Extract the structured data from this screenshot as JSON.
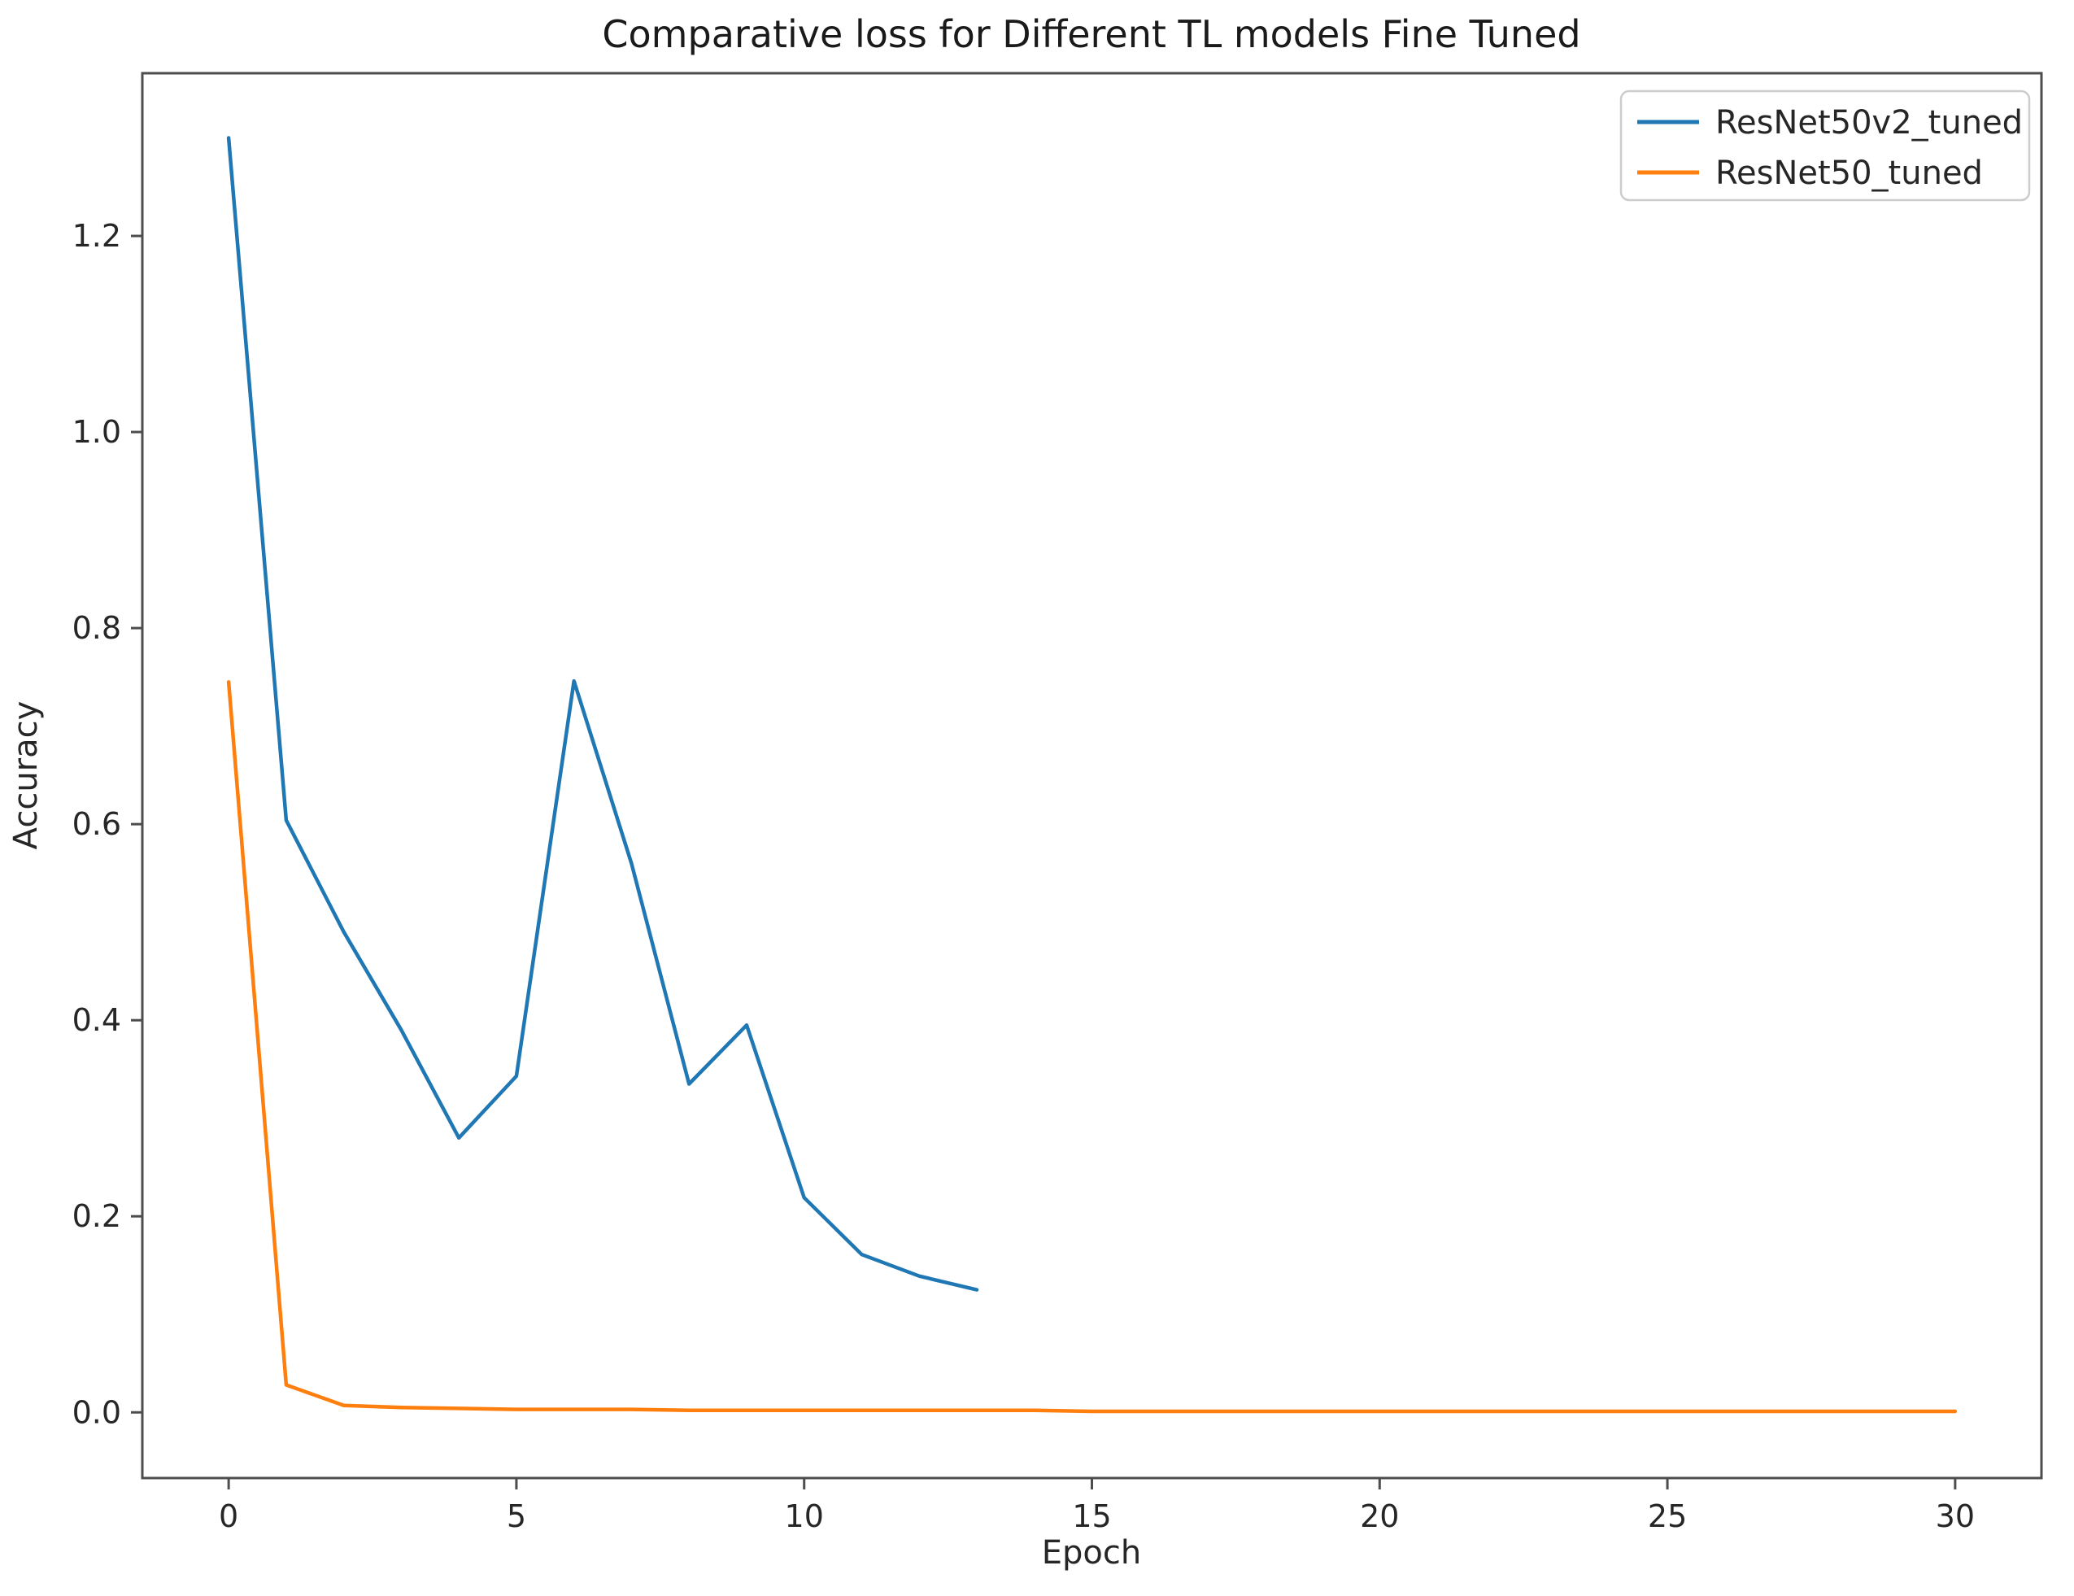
{
  "figure": {
    "title": "Comparative loss for Different TL models Fine Tuned",
    "xlabel": "Epoch",
    "ylabel": "Accuracy"
  },
  "chart_data": {
    "type": "line",
    "title": "Comparative loss for Different TL models Fine Tuned",
    "xlabel": "Epoch",
    "ylabel": "Accuracy",
    "xlim": [
      -1.5,
      31.5
    ],
    "ylim": [
      -0.067,
      1.366
    ],
    "x_ticks": [
      0,
      5,
      10,
      15,
      20,
      25,
      30
    ],
    "y_ticks": [
      0.0,
      0.2,
      0.4,
      0.6,
      0.8,
      1.0,
      1.2
    ],
    "grid": false,
    "legend_position": "upper right",
    "series": [
      {
        "name": "ResNet50v2_tuned",
        "color": "#1f77b4",
        "x": [
          0,
          1,
          2,
          3,
          4,
          5,
          6,
          7,
          8,
          9,
          10,
          11,
          12,
          13
        ],
        "values": [
          1.3,
          0.604,
          0.49,
          0.39,
          0.28,
          0.343,
          0.746,
          0.56,
          0.335,
          0.395,
          0.219,
          0.161,
          0.139,
          0.125
        ]
      },
      {
        "name": "ResNet50_tuned",
        "color": "#ff7f0e",
        "x": [
          0,
          1,
          2,
          3,
          4,
          5,
          6,
          7,
          8,
          9,
          10,
          11,
          12,
          13,
          14,
          15,
          16,
          17,
          18,
          19,
          20,
          21,
          22,
          23,
          24,
          25,
          26,
          27,
          28,
          29,
          30
        ],
        "values": [
          0.745,
          0.028,
          0.007,
          0.005,
          0.004,
          0.003,
          0.003,
          0.003,
          0.002,
          0.002,
          0.002,
          0.002,
          0.002,
          0.002,
          0.002,
          0.001,
          0.001,
          0.001,
          0.001,
          0.001,
          0.001,
          0.001,
          0.001,
          0.001,
          0.001,
          0.001,
          0.001,
          0.001,
          0.001,
          0.001,
          0.001
        ]
      }
    ]
  },
  "colors": {
    "spine": "#4d4d4d",
    "tick_text": "#262626",
    "title_text": "#1a1a1a",
    "legend_border": "#cccccc",
    "legend_bg": "#ffffff",
    "background": "#ffffff"
  }
}
